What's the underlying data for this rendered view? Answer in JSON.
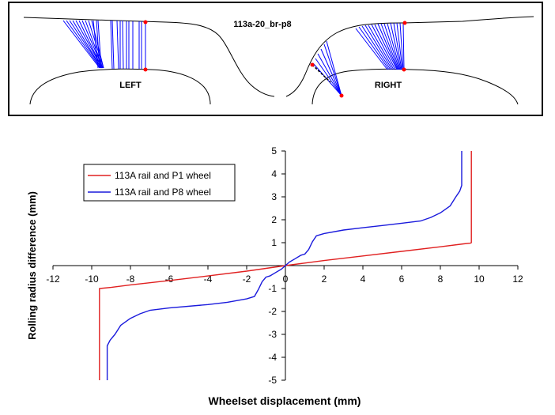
{
  "contact_panel": {
    "title": "113a-20_br-p8",
    "left_label": "LEFT",
    "right_label": "RIGHT",
    "line_color": "#0000ff",
    "point_color": "#ff0000"
  },
  "chart_data": {
    "type": "line",
    "title": "",
    "xlabel": "Wheelset displacement (mm)",
    "ylabel": "Rolling radius difference (mm)",
    "xlim": [
      -12,
      12
    ],
    "ylim": [
      -5,
      5
    ],
    "xticks": [
      -12,
      -10,
      -8,
      -6,
      -4,
      -2,
      0,
      2,
      4,
      6,
      8,
      10,
      12
    ],
    "yticks": [
      -5,
      -4,
      -3,
      -2,
      -1,
      0,
      1,
      2,
      3,
      4,
      5
    ],
    "legend_position": "top-left",
    "series": [
      {
        "name": "113A rail and P1 wheel",
        "color": "#e02020",
        "points": [
          [
            -9.6,
            -5
          ],
          [
            -9.6,
            -1
          ],
          [
            -9.0,
            -0.95
          ],
          [
            -8,
            -0.84
          ],
          [
            -6,
            -0.65
          ],
          [
            -4,
            -0.45
          ],
          [
            -2,
            -0.24
          ],
          [
            -1,
            -0.12
          ],
          [
            0,
            0
          ],
          [
            1,
            0.11
          ],
          [
            2,
            0.22
          ],
          [
            4,
            0.42
          ],
          [
            6,
            0.62
          ],
          [
            8,
            0.82
          ],
          [
            9.2,
            0.95
          ],
          [
            9.55,
            0.98
          ],
          [
            9.6,
            1.0
          ],
          [
            9.6,
            5
          ]
        ]
      },
      {
        "name": "113A rail and P8 wheel",
        "color": "#1a1adc",
        "points": [
          [
            -9.2,
            -5
          ],
          [
            -9.2,
            -3.5
          ],
          [
            -9.05,
            -3.25
          ],
          [
            -8.8,
            -3.0
          ],
          [
            -8.5,
            -2.6
          ],
          [
            -8.0,
            -2.3
          ],
          [
            -7.5,
            -2.1
          ],
          [
            -7.0,
            -1.95
          ],
          [
            -6,
            -1.85
          ],
          [
            -4,
            -1.7
          ],
          [
            -3,
            -1.6
          ],
          [
            -2,
            -1.45
          ],
          [
            -1.6,
            -1.35
          ],
          [
            -1.4,
            -1.05
          ],
          [
            -1.2,
            -0.7
          ],
          [
            -1.0,
            -0.5
          ],
          [
            -0.8,
            -0.45
          ],
          [
            -0.5,
            -0.3
          ],
          [
            -0.2,
            -0.15
          ],
          [
            0,
            0
          ],
          [
            0.2,
            0.15
          ],
          [
            0.5,
            0.3
          ],
          [
            0.8,
            0.45
          ],
          [
            1.0,
            0.5
          ],
          [
            1.2,
            0.7
          ],
          [
            1.4,
            1.05
          ],
          [
            1.6,
            1.3
          ],
          [
            2,
            1.4
          ],
          [
            3,
            1.55
          ],
          [
            4,
            1.65
          ],
          [
            5,
            1.75
          ],
          [
            6,
            1.85
          ],
          [
            7,
            1.95
          ],
          [
            7.5,
            2.1
          ],
          [
            8,
            2.3
          ],
          [
            8.5,
            2.6
          ],
          [
            8.8,
            3.0
          ],
          [
            9.0,
            3.25
          ],
          [
            9.1,
            3.5
          ],
          [
            9.1,
            5
          ]
        ]
      }
    ]
  }
}
